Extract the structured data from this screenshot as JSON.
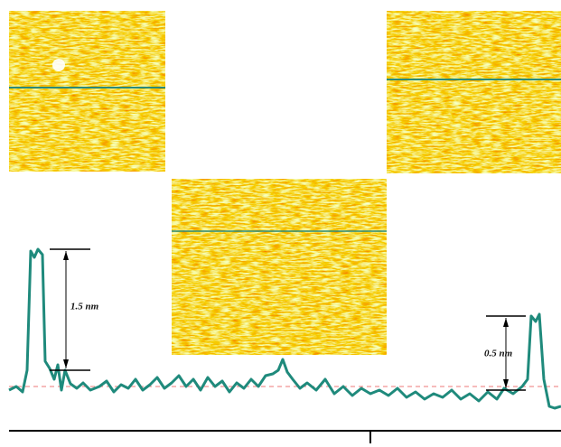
{
  "annotations": {
    "left_height": "1.5 nm",
    "right_height": "0.5 nm"
  }
}
